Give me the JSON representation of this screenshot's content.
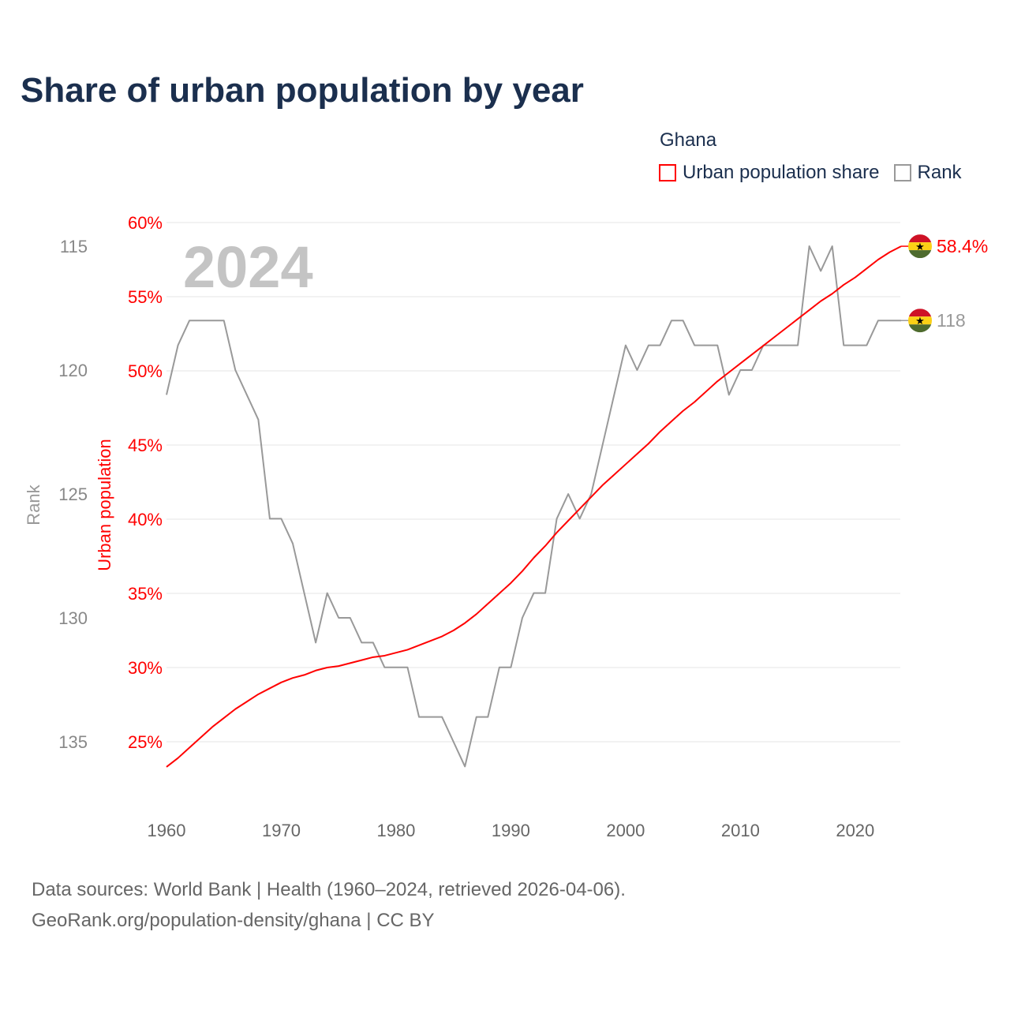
{
  "title": "Share of urban population by year",
  "legend": {
    "title": "Ghana",
    "items": [
      {
        "label": "Urban population share",
        "color": "#ff0000"
      },
      {
        "label": "Rank",
        "color": "#999999"
      }
    ]
  },
  "footer": {
    "line1": "Data sources: World Bank | Health (1960–2024, retrieved 2026-04-06).",
    "line2": "GeoRank.org/population-density/ghana | CC BY"
  },
  "chart_data": {
    "type": "line",
    "title": "Share of urban population by year",
    "year_watermark": "2024",
    "xlabel": "",
    "ylabel": "Urban population",
    "y2label": "Rank",
    "xlim": [
      1960,
      2024
    ],
    "ylim": [
      25,
      60
    ],
    "y2lim": [
      115,
      135
    ],
    "y2_inverted": true,
    "x_ticks": [
      "1960",
      "1970",
      "1980",
      "1990",
      "2000",
      "2010",
      "2020"
    ],
    "y_ticks": [
      "25%",
      "30%",
      "35%",
      "40%",
      "45%",
      "50%",
      "55%",
      "60%"
    ],
    "y2_ticks": [
      "115",
      "120",
      "125",
      "130",
      "135"
    ],
    "grid": true,
    "legend_position": "top-right",
    "x": [
      1960,
      1961,
      1962,
      1963,
      1964,
      1965,
      1966,
      1967,
      1968,
      1969,
      1970,
      1971,
      1972,
      1973,
      1974,
      1975,
      1976,
      1977,
      1978,
      1979,
      1980,
      1981,
      1982,
      1983,
      1984,
      1985,
      1986,
      1987,
      1988,
      1989,
      1990,
      1991,
      1992,
      1993,
      1994,
      1995,
      1996,
      1997,
      1998,
      1999,
      2000,
      2001,
      2002,
      2003,
      2004,
      2005,
      2006,
      2007,
      2008,
      2009,
      2010,
      2011,
      2012,
      2013,
      2014,
      2015,
      2016,
      2017,
      2018,
      2019,
      2020,
      2021,
      2022,
      2023,
      2024
    ],
    "series": [
      {
        "name": "Urban population share",
        "color": "#ff0000",
        "axis": "left",
        "values": [
          23.3,
          23.9,
          24.6,
          25.3,
          26.0,
          26.6,
          27.2,
          27.7,
          28.2,
          28.6,
          29.0,
          29.3,
          29.5,
          29.8,
          30.0,
          30.1,
          30.3,
          30.5,
          30.7,
          30.8,
          31.0,
          31.2,
          31.5,
          31.8,
          32.1,
          32.5,
          33.0,
          33.6,
          34.3,
          35.0,
          35.7,
          36.5,
          37.4,
          38.2,
          39.1,
          39.9,
          40.7,
          41.5,
          42.3,
          43.0,
          43.7,
          44.4,
          45.1,
          45.9,
          46.6,
          47.3,
          47.9,
          48.6,
          49.3,
          49.9,
          50.5,
          51.1,
          51.7,
          52.3,
          52.9,
          53.5,
          54.1,
          54.7,
          55.2,
          55.8,
          56.3,
          56.9,
          57.5,
          58.0,
          58.4
        ],
        "end_label": "58.4%"
      },
      {
        "name": "Rank",
        "color": "#999999",
        "axis": "right",
        "values": [
          121,
          119,
          118,
          118,
          118,
          118,
          120,
          121,
          122,
          126,
          126,
          127,
          129,
          131,
          129,
          130,
          130,
          131,
          131,
          132,
          132,
          132,
          134,
          134,
          134,
          135,
          136,
          134,
          134,
          132,
          132,
          130,
          129,
          129,
          126,
          125,
          126,
          125,
          123,
          121,
          119,
          120,
          119,
          119,
          118,
          118,
          119,
          119,
          119,
          121,
          120,
          120,
          119,
          119,
          119,
          119,
          115,
          116,
          115,
          119,
          119,
          119,
          118,
          118,
          118
        ],
        "end_label": "118"
      }
    ]
  }
}
